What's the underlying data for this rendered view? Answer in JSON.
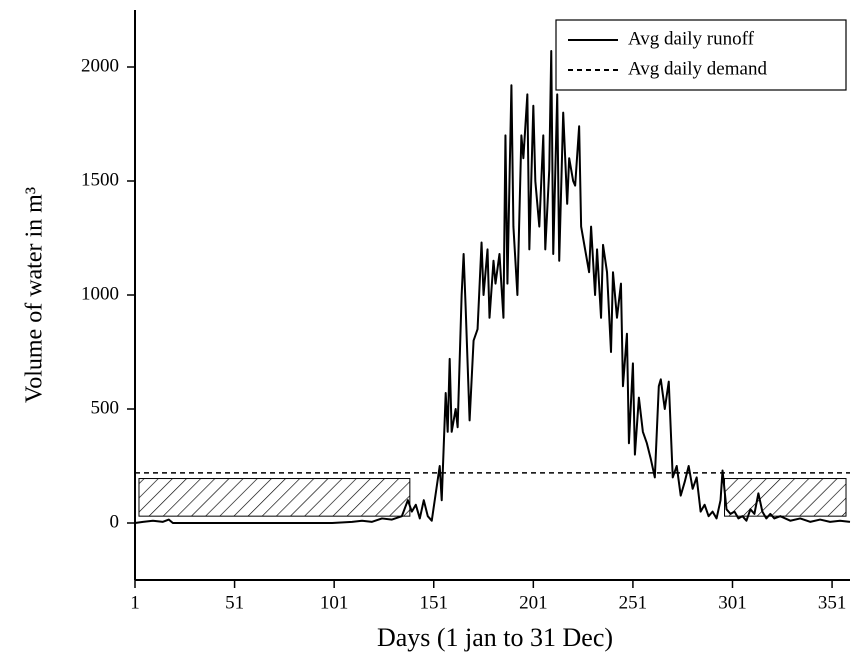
{
  "chart_data": {
    "type": "line",
    "xlabel": "Days (1 jan to 31 Dec)",
    "ylabel": "Volume of water in m³",
    "xlim": [
      1,
      360
    ],
    "ylim": [
      -250,
      2250
    ],
    "xticks": [
      1,
      51,
      101,
      151,
      201,
      251,
      301,
      351
    ],
    "yticks": [
      0,
      500,
      1000,
      1500,
      2000
    ],
    "legend": "upper right",
    "series": [
      {
        "name": "Avg daily runoff",
        "color": "#000000",
        "style": "solid",
        "x": [
          1,
          5,
          10,
          15,
          18,
          20,
          50,
          100,
          110,
          115,
          120,
          125,
          130,
          135,
          138,
          140,
          142,
          144,
          146,
          148,
          150,
          152,
          154,
          155,
          157,
          158,
          159,
          160,
          162,
          163,
          165,
          166,
          167,
          169,
          171,
          173,
          175,
          176,
          178,
          179,
          181,
          182,
          184,
          186,
          187,
          188,
          190,
          191,
          193,
          195,
          196,
          198,
          199,
          201,
          202,
          204,
          206,
          207,
          209,
          210,
          211,
          213,
          214,
          216,
          218,
          219,
          221,
          222,
          224,
          225,
          227,
          229,
          230,
          232,
          233,
          235,
          236,
          238,
          240,
          241,
          243,
          245,
          246,
          248,
          249,
          251,
          252,
          254,
          256,
          258,
          260,
          262,
          264,
          265,
          267,
          269,
          271,
          273,
          275,
          277,
          279,
          281,
          283,
          285,
          287,
          289,
          291,
          293,
          295,
          296,
          298,
          300,
          302,
          304,
          306,
          308,
          310,
          312,
          314,
          316,
          318,
          320,
          322,
          325,
          330,
          335,
          340,
          345,
          350,
          355,
          360
        ],
        "values": [
          0,
          5,
          10,
          5,
          15,
          0,
          0,
          0,
          5,
          10,
          5,
          20,
          15,
          30,
          100,
          50,
          80,
          20,
          100,
          30,
          10,
          130,
          250,
          100,
          570,
          400,
          720,
          400,
          500,
          420,
          1000,
          1180,
          950,
          450,
          800,
          850,
          1230,
          1000,
          1200,
          900,
          1150,
          1050,
          1180,
          900,
          1700,
          1050,
          1920,
          1300,
          1000,
          1700,
          1600,
          1880,
          1200,
          1830,
          1500,
          1300,
          1700,
          1200,
          1550,
          2070,
          1180,
          1880,
          1150,
          1800,
          1400,
          1600,
          1500,
          1480,
          1740,
          1300,
          1200,
          1100,
          1300,
          1000,
          1200,
          900,
          1220,
          1100,
          750,
          1100,
          900,
          1050,
          600,
          830,
          350,
          700,
          300,
          550,
          400,
          350,
          280,
          200,
          600,
          630,
          500,
          620,
          200,
          250,
          120,
          180,
          250,
          150,
          200,
          50,
          80,
          30,
          50,
          20,
          100,
          230,
          60,
          40,
          50,
          20,
          30,
          10,
          60,
          40,
          130,
          50,
          20,
          40,
          20,
          30,
          10,
          20,
          5,
          15,
          5,
          10,
          5
        ]
      },
      {
        "name": "Avg daily demand",
        "color": "#000000",
        "style": "dashed",
        "x": [
          1,
          360
        ],
        "values": [
          220,
          220
        ]
      }
    ],
    "deficit_regions": [
      {
        "x": [
          3,
          139
        ],
        "y": [
          30,
          195
        ]
      },
      {
        "x": [
          297,
          358
        ],
        "y": [
          30,
          195
        ]
      }
    ]
  }
}
